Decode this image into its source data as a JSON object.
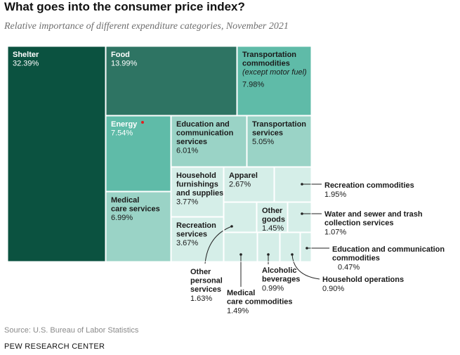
{
  "title": "What goes into the consumer price index?",
  "subtitle": "Relative importance of different expenditure categories, November 2021",
  "source": "Source: U.S. Bureau of Labor Statistics",
  "org": "PEW RESEARCH CENTER",
  "chart_data": {
    "type": "treemap",
    "unit": "%",
    "items": [
      {
        "name": "Shelter",
        "value": 32.39,
        "value_label": "32.39%",
        "color": "#0b5240"
      },
      {
        "name": "Food",
        "value": 13.99,
        "value_label": "13.99%",
        "color": "#2e7463"
      },
      {
        "name": "Transportation commodities",
        "note": "(except motor fuel)",
        "value": 7.98,
        "value_label": "7.98%",
        "color": "#5fbba8"
      },
      {
        "name": "Energy",
        "value": 7.54,
        "value_label": "7.54%",
        "color": "#5fbba8",
        "marker_color": "#e02020"
      },
      {
        "name": "Education and communication services",
        "value": 6.01,
        "value_label": "6.01%",
        "color": "#9ad3c6"
      },
      {
        "name": "Transportation services",
        "value": 5.05,
        "value_label": "5.05%",
        "color": "#9ad3c6"
      },
      {
        "name": "Medical care services",
        "value": 6.99,
        "value_label": "6.99%",
        "color": "#9ad3c6"
      },
      {
        "name": "Household furnishings and supplies",
        "value": 3.77,
        "value_label": "3.77%",
        "color": "#d5eee8"
      },
      {
        "name": "Apparel",
        "value": 2.67,
        "value_label": "2.67%",
        "color": "#d5eee8"
      },
      {
        "name": "Recreation commodities",
        "value": 1.95,
        "value_label": "1.95%",
        "color": "#d5eee8"
      },
      {
        "name": "Recreation services",
        "value": 3.67,
        "value_label": "3.67%",
        "color": "#d5eee8"
      },
      {
        "name": "Other goods",
        "value": 1.45,
        "value_label": "1.45%",
        "color": "#d5eee8"
      },
      {
        "name": "Water and sewer and trash collection services",
        "value": 1.07,
        "value_label": "1.07%",
        "color": "#d5eee8"
      },
      {
        "name": "Other personal services",
        "value": 1.63,
        "value_label": "1.63%",
        "color": "#d5eee8"
      },
      {
        "name": "Medical care commodities",
        "value": 1.49,
        "value_label": "1.49%",
        "color": "#d5eee8"
      },
      {
        "name": "Alcoholic beverages",
        "value": 0.99,
        "value_label": "0.99%",
        "color": "#d5eee8"
      },
      {
        "name": "Household operations",
        "value": 0.9,
        "value_label": "0.90%",
        "color": "#d5eee8"
      },
      {
        "name": "Education and communication commodities",
        "value": 0.47,
        "value_label": "0.47%",
        "color": "#d5eee8"
      }
    ]
  }
}
